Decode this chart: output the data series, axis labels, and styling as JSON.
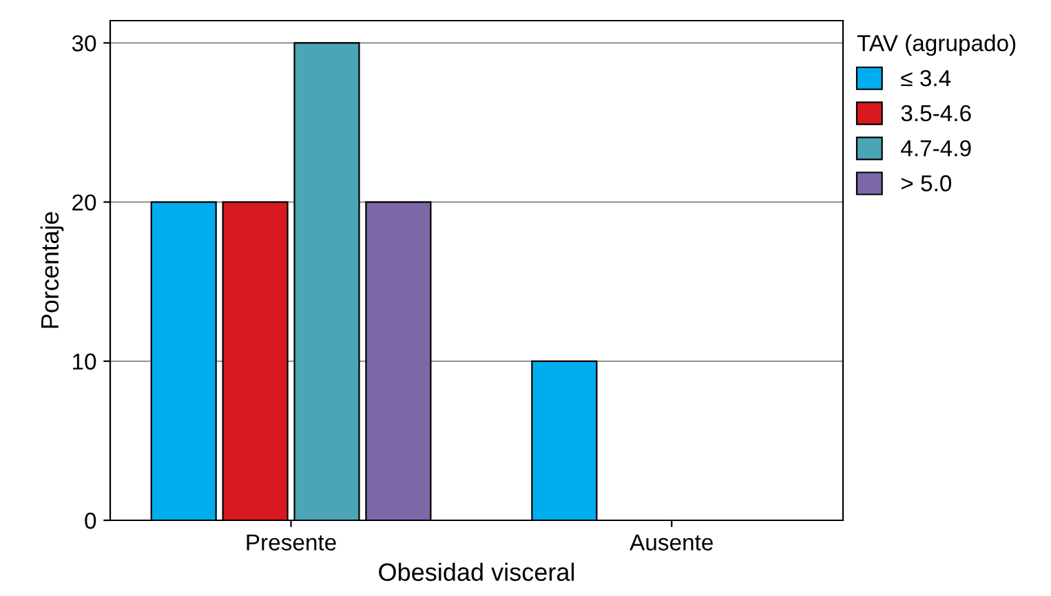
{
  "chart_data": {
    "type": "bar",
    "xlabel": "Obesidad visceral",
    "ylabel": "Porcentaje",
    "legend_title": "TAV (agrupado)",
    "categories": [
      "Presente",
      "Ausente"
    ],
    "series": [
      {
        "name": "≤ 3.4",
        "color": "#00aeef",
        "values": [
          20,
          10
        ]
      },
      {
        "name": "3.5-4.6",
        "color": "#d7191f",
        "values": [
          20,
          null
        ]
      },
      {
        "name": "4.7-4.9",
        "color": "#4aa6b4",
        "values": [
          30,
          null
        ]
      },
      {
        "name": "> 5.0",
        "color": "#7b68a6",
        "values": [
          20,
          null
        ]
      }
    ],
    "ylim": [
      0,
      31.4
    ],
    "yticks": [
      0,
      10,
      20,
      30
    ],
    "grid": "y",
    "legend": "top right"
  }
}
